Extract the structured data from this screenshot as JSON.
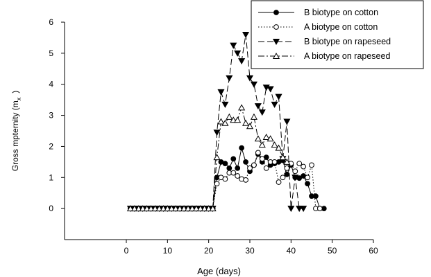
{
  "chart_data": {
    "type": "line",
    "xlabel": "Age (days)",
    "ylabel": "Gross mpternity (m",
    "ylabel_sub": "x",
    "ylabel_tail": ")",
    "xlim": [
      -15,
      60
    ],
    "ylim": [
      -1,
      6
    ],
    "xticks": [
      0,
      10,
      20,
      30,
      40,
      50,
      60
    ],
    "yticks": [
      0,
      1,
      2,
      3,
      4,
      5,
      6
    ],
    "grid": false,
    "legend_position": "top-right",
    "series": [
      {
        "name": "B biotype on cotton",
        "marker": "circle-filled",
        "dash": "solid",
        "x": [
          1,
          2,
          3,
          4,
          5,
          6,
          7,
          8,
          9,
          10,
          11,
          12,
          13,
          14,
          15,
          16,
          17,
          18,
          19,
          20,
          21,
          22,
          23,
          24,
          25,
          26,
          27,
          28,
          29,
          30,
          31,
          32,
          33,
          34,
          35,
          36,
          37,
          38,
          39,
          40,
          41,
          42,
          43,
          44,
          45,
          46,
          47,
          48
        ],
        "y": [
          0,
          0,
          0,
          0,
          0,
          0,
          0,
          0,
          0,
          0,
          0,
          0,
          0,
          0,
          0,
          0,
          0,
          0,
          0,
          0,
          0,
          1.0,
          1.5,
          1.45,
          1.3,
          1.6,
          1.3,
          1.95,
          1.5,
          1.2,
          1.4,
          1.75,
          1.5,
          1.65,
          1.4,
          1.45,
          1.5,
          1.55,
          1.1,
          1.4,
          1.0,
          0.98,
          1.05,
          0.8,
          0.4,
          0.4,
          0.0,
          0.0
        ]
      },
      {
        "name": "A biotype on cotton",
        "marker": "circle-open",
        "dash": "dotted",
        "x": [
          1,
          2,
          3,
          4,
          5,
          6,
          7,
          8,
          9,
          10,
          11,
          12,
          13,
          14,
          15,
          16,
          17,
          18,
          19,
          20,
          21,
          22,
          23,
          24,
          25,
          26,
          27,
          28,
          29,
          30,
          31,
          32,
          33,
          34,
          35,
          36,
          37,
          38,
          39,
          40,
          41,
          42,
          43,
          44,
          45,
          46,
          47
        ],
        "y": [
          0,
          0,
          0,
          0,
          0,
          0,
          0,
          0,
          0,
          0,
          0,
          0,
          0,
          0,
          0,
          0,
          0,
          0,
          0,
          0,
          0,
          0.8,
          1.0,
          0.95,
          1.15,
          1.15,
          1.05,
          0.95,
          0.92,
          1.3,
          1.4,
          1.8,
          1.6,
          1.3,
          1.5,
          1.5,
          0.85,
          1.0,
          1.3,
          1.45,
          1.2,
          1.45,
          1.35,
          1.0,
          1.4,
          0.0,
          0.0
        ]
      },
      {
        "name": "B biotype on rapeseed",
        "marker": "triangle-down-filled",
        "dash": "dashed",
        "x": [
          1,
          2,
          3,
          4,
          5,
          6,
          7,
          8,
          9,
          10,
          11,
          12,
          13,
          14,
          15,
          16,
          17,
          18,
          19,
          20,
          21,
          22,
          23,
          24,
          25,
          26,
          27,
          28,
          29,
          30,
          31,
          32,
          33,
          34,
          35,
          36,
          37,
          38,
          39,
          40,
          41,
          42,
          43
        ],
        "y": [
          0,
          0,
          0,
          0,
          0,
          0,
          0,
          0,
          0,
          0,
          0,
          0,
          0,
          0,
          0,
          0,
          0,
          0,
          0,
          0,
          0,
          2.45,
          3.75,
          3.35,
          4.2,
          5.25,
          5.0,
          4.75,
          5.6,
          4.2,
          4.0,
          3.3,
          3.1,
          3.9,
          3.85,
          3.35,
          3.6,
          1.6,
          2.8,
          0.0,
          1.0,
          0.0,
          0.0
        ]
      },
      {
        "name": "A biotype on rapeseed",
        "marker": "triangle-up-open",
        "dash": "dashdot",
        "x": [
          1,
          2,
          3,
          4,
          5,
          6,
          7,
          8,
          9,
          10,
          11,
          12,
          13,
          14,
          15,
          16,
          17,
          18,
          19,
          20,
          21,
          22,
          23,
          24,
          25,
          26,
          27,
          28,
          29,
          30,
          31,
          32,
          33,
          34,
          35,
          36,
          37,
          38,
          39
        ],
        "y": [
          0,
          0,
          0,
          0,
          0,
          0,
          0,
          0,
          0,
          0,
          0,
          0,
          0,
          0,
          0,
          0,
          0,
          0,
          0,
          0,
          0,
          1.65,
          2.8,
          2.75,
          2.95,
          2.85,
          2.85,
          3.25,
          2.75,
          2.65,
          2.95,
          2.25,
          2.05,
          2.3,
          2.25,
          2.05,
          1.95,
          1.65,
          1.5
        ]
      }
    ]
  }
}
